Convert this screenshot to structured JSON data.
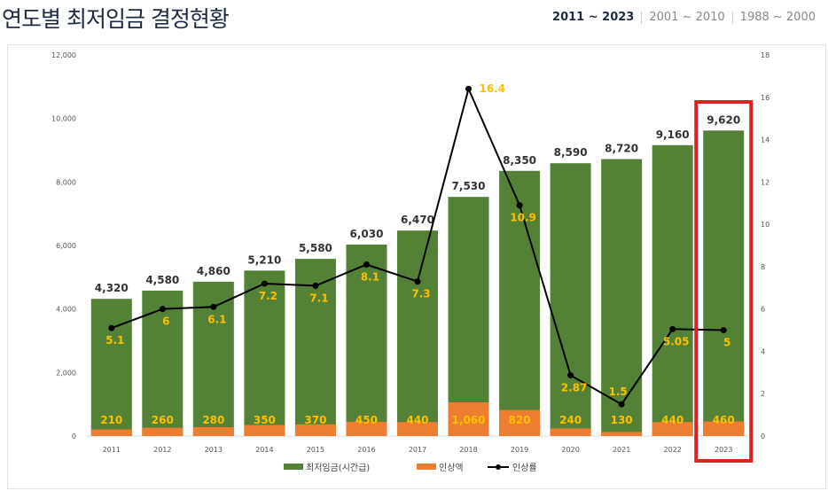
{
  "header": {
    "title": "연도별 최저임금 결정현황",
    "ranges": [
      "2011 ~ 2023",
      "2001 ~ 2010",
      "1988 ~ 2000"
    ],
    "active_range": 0
  },
  "chart_data": {
    "type": "bar",
    "categories": [
      "2011",
      "2012",
      "2013",
      "2014",
      "2015",
      "2016",
      "2017",
      "2018",
      "2019",
      "2020",
      "2021",
      "2022",
      "2023"
    ],
    "series": [
      {
        "name": "최저임금(시간급)",
        "type": "bar",
        "axis": "left",
        "color": "#538135",
        "values": [
          4320,
          4580,
          4860,
          5210,
          5580,
          6030,
          6470,
          7530,
          8350,
          8590,
          8720,
          9160,
          9620
        ],
        "labels": [
          "4,320",
          "4,580",
          "4,860",
          "5,210",
          "5,580",
          "6,030",
          "6,470",
          "7,530",
          "8,350",
          "8,590",
          "8,720",
          "9,160",
          "9,620"
        ]
      },
      {
        "name": "인상액",
        "type": "bar",
        "axis": "left",
        "color": "#ed7d31",
        "values": [
          210,
          260,
          280,
          350,
          370,
          450,
          440,
          1060,
          820,
          240,
          130,
          440,
          460
        ],
        "labels": [
          "210",
          "260",
          "280",
          "350",
          "370",
          "450",
          "440",
          "1,060",
          "820",
          "240",
          "130",
          "440",
          "460"
        ]
      },
      {
        "name": "인상률",
        "type": "line",
        "axis": "right",
        "color": "#000000",
        "values": [
          5.1,
          6,
          6.1,
          7.2,
          7.1,
          8.1,
          7.3,
          16.4,
          10.9,
          2.87,
          1.5,
          5.05,
          5
        ],
        "labels": [
          "5.1",
          "6",
          "6.1",
          "7.2",
          "7.1",
          "8.1",
          "7.3",
          "16.4",
          "10.9",
          "2.87",
          "1.5",
          "5.05",
          "5"
        ]
      }
    ],
    "ylim": [
      0,
      12000
    ],
    "yticks": [
      "0",
      "2,000",
      "4,000",
      "6,000",
      "8,000",
      "10,000",
      "12,000"
    ],
    "y2lim": [
      0,
      18
    ],
    "y2ticks": [
      "0",
      "2",
      "4",
      "6",
      "8",
      "10",
      "12",
      "14",
      "16",
      "18"
    ],
    "legend": "bottom",
    "label_color": "#ffc000",
    "highlight": {
      "category": "2023",
      "color": "#e02020"
    }
  }
}
